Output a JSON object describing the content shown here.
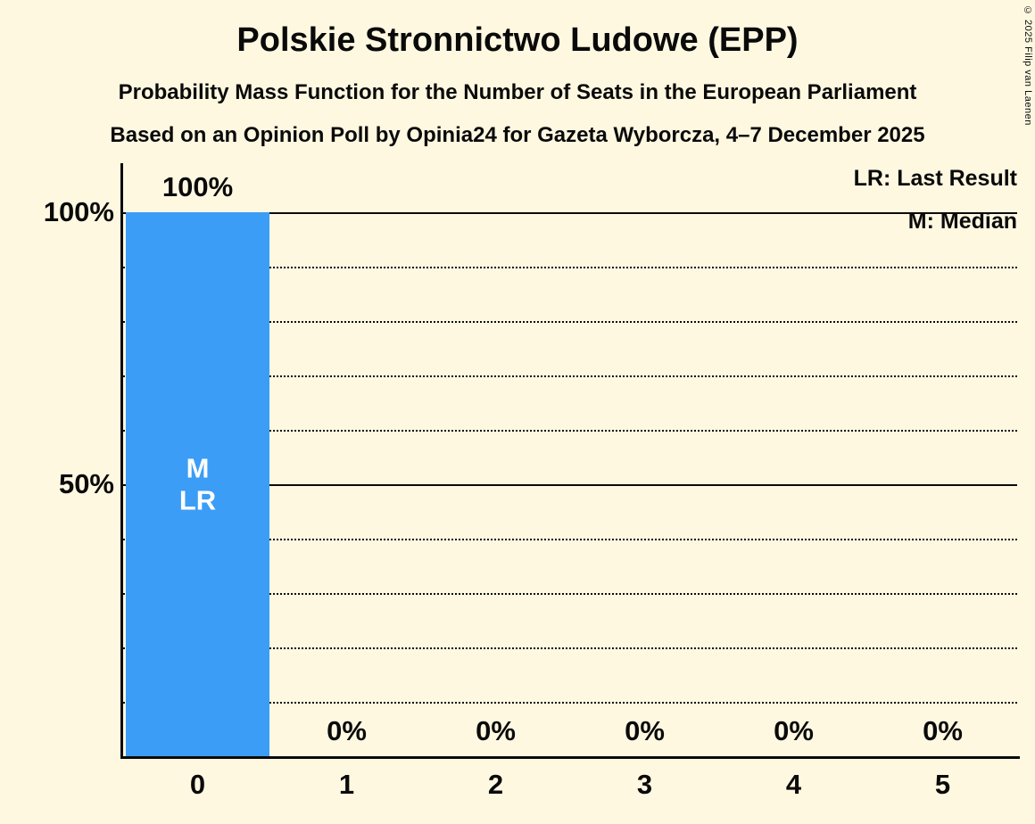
{
  "title": "Polskie Stronnictwo Ludowe (EPP)",
  "subtitle": "Probability Mass Function for the Number of Seats in the European Parliament",
  "source_line": "Based on an Opinion Poll by Opinia24 for Gazeta Wyborcza, 4–7 December 2025",
  "legend": {
    "last_result": "LR: Last Result",
    "median": "M: Median"
  },
  "copyright": "© 2025 Filip van Laenen",
  "colors": {
    "background": "#FFF8E1",
    "bar": "#3B9DF6",
    "text": "#0A0A0A",
    "bar_label": "#FFFFFF"
  },
  "y_axis": {
    "tick_labels": [
      "100%",
      "50%"
    ]
  },
  "chart_data": {
    "type": "bar",
    "title": "Polskie Stronnictwo Ludowe (EPP)",
    "categories": [
      "0",
      "1",
      "2",
      "3",
      "4",
      "5"
    ],
    "values": [
      100,
      0,
      0,
      0,
      0,
      0
    ],
    "value_labels": [
      "100%",
      "0%",
      "0%",
      "0%",
      "0%",
      "0%"
    ],
    "bar_annotations": [
      [
        "M",
        "LR"
      ],
      [],
      [],
      [],
      [],
      []
    ],
    "xlabel": "",
    "ylabel": "",
    "ylim": [
      0,
      100
    ],
    "ytick_labels": [
      "100%",
      "50%"
    ],
    "gridlines": {
      "solid_at": [
        100,
        50
      ],
      "dotted_every": 10
    },
    "legend_position": "top-right",
    "bar_color": "#3B9DF6",
    "background_color": "#FFF8E1"
  }
}
